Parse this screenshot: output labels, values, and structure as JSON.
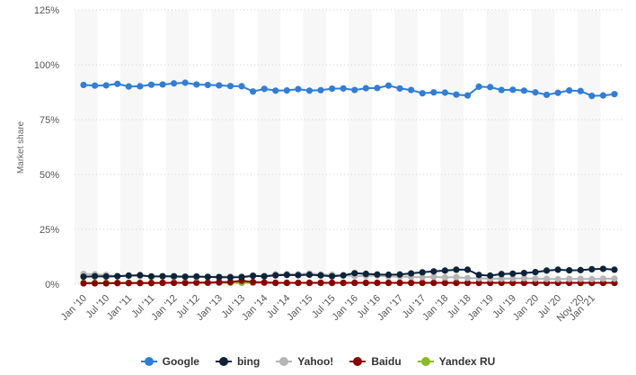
{
  "chart_data": {
    "type": "line",
    "ylabel": "Market share",
    "xlabel": "",
    "ylim": [
      0,
      125
    ],
    "y_ticks": [
      "0%",
      "25%",
      "50%",
      "75%",
      "100%",
      "125%"
    ],
    "y_tick_values": [
      0,
      25,
      50,
      75,
      100,
      125
    ],
    "grid": "horizontal dotted",
    "legend_position": "bottom-center",
    "categories": [
      "Jan '10",
      "Apr '10",
      "Jul '10",
      "Oct '10",
      "Jan '11",
      "Apr '11",
      "Jul '11",
      "Oct '11",
      "Jan '12",
      "Apr '12",
      "Jul '12",
      "Oct '12",
      "Jan '13",
      "Apr '13",
      "Jul '13",
      "Oct '13",
      "Jan '14",
      "Apr '14",
      "Jul '14",
      "Oct '14",
      "Jan '15",
      "Apr '15",
      "Jul '15",
      "Oct '15",
      "Jan '16",
      "Apr '16",
      "Jul '16",
      "Oct '16",
      "Jan '17",
      "Apr '17",
      "Jul '17",
      "Oct '17",
      "Jan '18",
      "Apr '18",
      "Jul '18",
      "Oct '18",
      "Jan '19",
      "Apr '19",
      "Jul '19",
      "Oct '19",
      "Jan '20",
      "Apr '20",
      "Jul '20",
      "Sep '20",
      "Nov '20",
      "Jan '21",
      "Mar '21",
      "May '21"
    ],
    "x_tick_labels": [
      "Jan '10",
      "Jul '10",
      "Jan '11",
      "Jul '11",
      "Jan '12",
      "Jul '12",
      "Jan '13",
      "Jul '13",
      "Jan '14",
      "Jul '14",
      "Jan '15",
      "Jul '15",
      "Jan '16",
      "Jul '16",
      "Jan '17",
      "Jul '17",
      "Jan '18",
      "Jul '18",
      "Jan '19",
      "Jul '19",
      "Jan '20",
      "Jul '20",
      "Nov '20",
      "Jan '21"
    ],
    "series": [
      {
        "name": "Google",
        "color": "#2f7ed8",
        "values": [
          90.8,
          90.5,
          90.6,
          91.3,
          90.1,
          90.2,
          90.9,
          91.0,
          91.5,
          91.8,
          91.0,
          90.8,
          90.6,
          90.3,
          90.2,
          87.8,
          89.0,
          88.2,
          88.3,
          88.9,
          88.2,
          88.4,
          89.1,
          89.2,
          88.5,
          89.3,
          89.4,
          90.5,
          89.2,
          88.5,
          87.0,
          87.4,
          87.3,
          86.4,
          86.0,
          90.0,
          89.8,
          88.5,
          88.6,
          88.2,
          87.4,
          86.3,
          87.2,
          88.3,
          88.0,
          85.8,
          86.0,
          86.6
        ]
      },
      {
        "name": "bing",
        "color": "#0d233a",
        "values": [
          3.4,
          3.6,
          3.5,
          3.6,
          3.9,
          4.1,
          3.5,
          3.6,
          3.6,
          3.4,
          3.5,
          3.3,
          3.2,
          3.1,
          3.2,
          3.8,
          3.6,
          4.0,
          4.2,
          4.1,
          4.3,
          4.0,
          3.6,
          4.0,
          5.0,
          4.7,
          4.4,
          4.3,
          4.4,
          4.9,
          5.4,
          5.8,
          6.2,
          6.6,
          6.6,
          4.2,
          3.9,
          4.6,
          4.8,
          5.1,
          5.5,
          6.2,
          6.6,
          6.3,
          6.4,
          6.8,
          7.0,
          6.6
        ]
      },
      {
        "name": "Yahoo!",
        "color": "#b5b5b5",
        "values": [
          4.6,
          4.5,
          4.2,
          3.7,
          4.0,
          3.7,
          3.6,
          3.6,
          3.3,
          3.3,
          3.2,
          3.4,
          3.4,
          3.5,
          3.5,
          3.9,
          3.6,
          4.5,
          4.6,
          4.5,
          4.9,
          4.4,
          4.3,
          4.0,
          3.7,
          3.8,
          3.9,
          3.5,
          3.5,
          3.3,
          3.2,
          3.3,
          3.1,
          3.2,
          2.8,
          2.7,
          2.5,
          2.5,
          2.6,
          2.7,
          2.5,
          2.4,
          2.3,
          2.4,
          2.4,
          2.3,
          2.5,
          2.5
        ]
      },
      {
        "name": "Baidu",
        "color": "#8b0000",
        "values": [
          0.4,
          0.4,
          0.4,
          0.5,
          0.5,
          0.5,
          0.5,
          0.6,
          0.6,
          0.6,
          0.7,
          0.7,
          0.9,
          1.0,
          1.6,
          1.0,
          0.8,
          0.6,
          0.6,
          0.6,
          0.6,
          0.6,
          0.6,
          0.6,
          0.6,
          0.6,
          0.6,
          0.6,
          0.6,
          0.6,
          0.6,
          0.6,
          0.6,
          0.6,
          0.6,
          0.6,
          0.6,
          0.6,
          0.6,
          0.6,
          0.6,
          0.6,
          0.6,
          0.6,
          0.6,
          0.6,
          0.6,
          0.6
        ]
      },
      {
        "name": "Yandex RU",
        "color": "#8bbc21",
        "values": [
          0.6,
          0.6,
          0.6,
          0.6,
          0.6,
          0.6,
          0.6,
          0.6,
          0.6,
          0.6,
          0.6,
          0.6,
          0.6,
          0.6,
          0.6,
          0.6,
          0.6,
          0.6,
          0.6,
          0.6,
          0.6,
          0.6,
          0.6,
          0.6,
          0.6,
          0.6,
          0.6,
          0.6,
          0.6,
          0.6,
          0.6,
          0.6,
          0.6,
          0.6,
          0.6,
          0.6,
          0.6,
          0.6,
          0.6,
          0.6,
          0.6,
          0.6,
          0.6,
          0.6,
          0.6,
          0.6,
          0.6,
          0.6
        ]
      }
    ]
  }
}
